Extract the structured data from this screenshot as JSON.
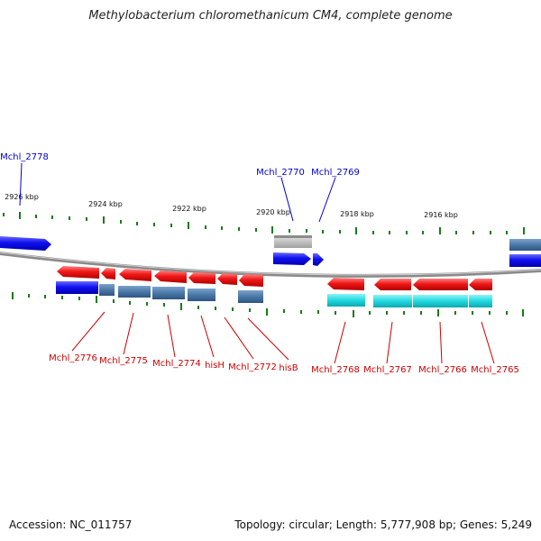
{
  "title": "Methylobacterium chloromethanicum CM4, complete genome",
  "footer": {
    "accession": "Accession: NC_011757",
    "info": "Topology: circular; Length: 5,777,908 bp; Genes: 5,249"
  },
  "scale_labels": [
    "2926 kbp",
    "2924 kbp",
    "2922 kbp",
    "2920 kbp",
    "2918 kbp",
    "2916 kbp"
  ],
  "colors": {
    "backbone": "#8a8a8a",
    "forward_gene": "#1010e8",
    "reverse_gene": "#e81010",
    "protein_steel": "#4a78a8",
    "protein_cyan": "#20d8e0",
    "grey_feature": "#b8b8b8",
    "tick": "#1a7a1a",
    "top_label": "#0000cc",
    "bottom_label": "#cc0000"
  },
  "top_labels": [
    "Mchl_2778",
    "Mchl_2770",
    "Mchl_2769"
  ],
  "bottom_labels": [
    "Mchl_2776",
    "Mchl_2775",
    "Mchl_2774",
    "hisH",
    "Mchl_2772",
    "hisB",
    "Mchl_2768",
    "Mchl_2767",
    "Mchl_2766",
    "Mchl_2765"
  ]
}
